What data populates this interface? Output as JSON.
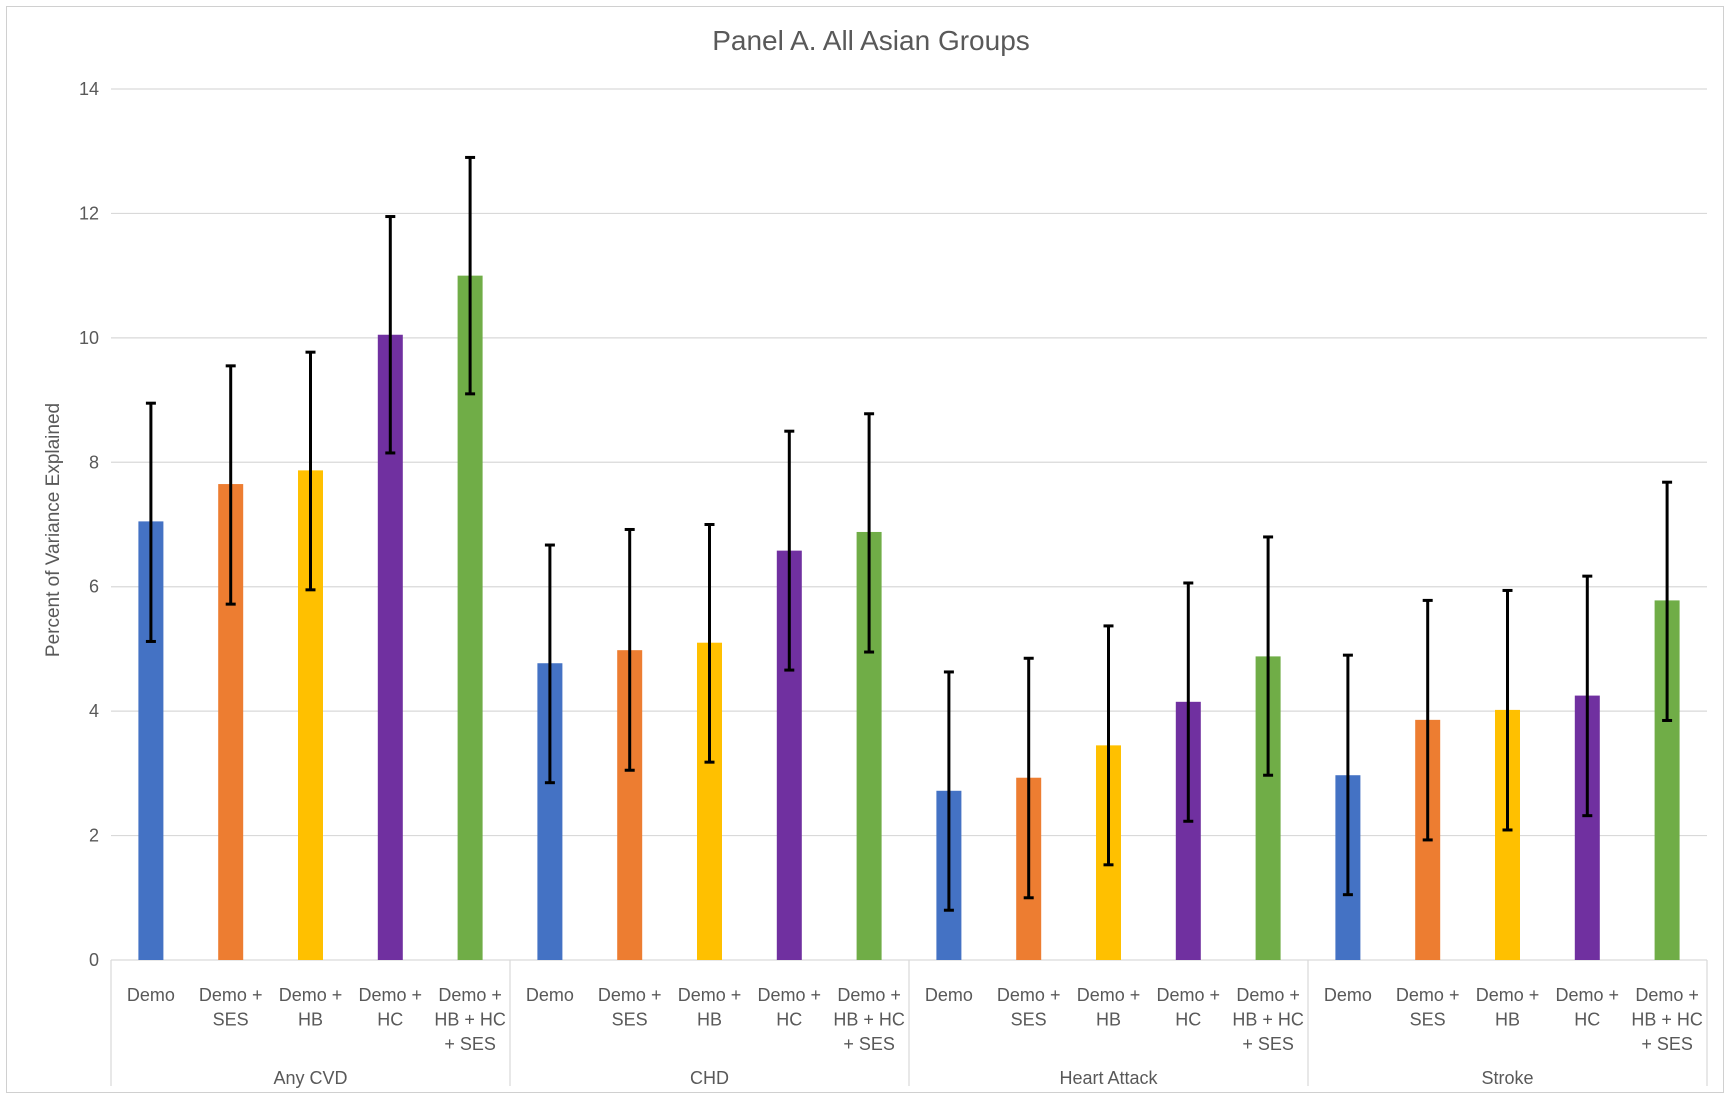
{
  "chart_data": {
    "type": "bar",
    "title": "Panel A. All Asian Groups",
    "ylabel": "Percent of Variance Explained",
    "xlabel": "",
    "ylim": [
      0,
      14
    ],
    "y_ticks": [
      0,
      2,
      4,
      6,
      8,
      10,
      12,
      14
    ],
    "grid": true,
    "legend": "none",
    "groups": [
      {
        "name": "Any CVD",
        "categories": [
          "Demo",
          "Demo + SES",
          "Demo + HB",
          "Demo + HC",
          "Demo + HB + HC + SES"
        ],
        "values": [
          7.05,
          7.65,
          7.87,
          10.05,
          11.0
        ],
        "error_low": [
          5.12,
          5.72,
          5.95,
          8.15,
          9.1
        ],
        "error_high": [
          8.95,
          9.55,
          9.77,
          11.95,
          12.9
        ]
      },
      {
        "name": "CHD",
        "categories": [
          "Demo",
          "Demo + SES",
          "Demo + HB",
          "Demo + HC",
          "Demo + HB + HC + SES"
        ],
        "values": [
          4.77,
          4.98,
          5.1,
          6.58,
          6.88
        ],
        "error_low": [
          2.85,
          3.05,
          3.18,
          4.66,
          4.95
        ],
        "error_high": [
          6.67,
          6.92,
          7.0,
          8.5,
          8.78
        ]
      },
      {
        "name": "Heart Attack",
        "categories": [
          "Demo",
          "Demo + SES",
          "Demo + HB",
          "Demo + HC",
          "Demo + HB + HC + SES"
        ],
        "values": [
          2.72,
          2.93,
          3.45,
          4.15,
          4.88
        ],
        "error_low": [
          0.8,
          1.0,
          1.53,
          2.23,
          2.97
        ],
        "error_high": [
          4.63,
          4.85,
          5.37,
          6.06,
          6.8
        ]
      },
      {
        "name": "Stroke",
        "categories": [
          "Demo",
          "Demo + SES",
          "Demo + HB",
          "Demo + HC",
          "Demo + HB + HC + SES"
        ],
        "values": [
          2.97,
          3.86,
          4.02,
          4.25,
          5.78
        ],
        "error_low": [
          1.05,
          1.93,
          2.09,
          2.32,
          3.85
        ],
        "error_high": [
          4.9,
          5.78,
          5.94,
          6.17,
          7.68
        ]
      }
    ],
    "series_colors": [
      "#4472C4",
      "#ED7D31",
      "#FFC000",
      "#7030A0",
      "#70AD47"
    ],
    "error_bar_color": "#000000",
    "grid_color": "#d9d9d9",
    "text_color": "#595959"
  }
}
